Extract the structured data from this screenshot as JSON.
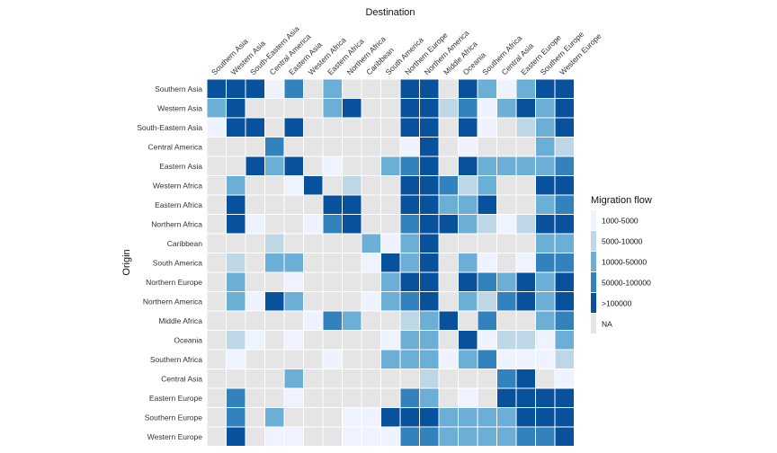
{
  "chart_data": {
    "type": "heatmap",
    "title": "Destination",
    "xlabel": "Destination",
    "ylabel": "Origin",
    "x_categories": [
      "Southern Asia",
      "Western Asia",
      "South-Eastern Asia",
      "Central America",
      "Eastern Asia",
      "Western Africa",
      "Eastern Africa",
      "Northern Africa",
      "Caribbean",
      "South America",
      "Northern Europe",
      "Northern America",
      "Middle Africa",
      "Oceania",
      "Southern Africa",
      "Central Asia",
      "Eastern Europe",
      "Southern Europe",
      "Western Europe"
    ],
    "y_categories": [
      "Southern Asia",
      "Western Asia",
      "South-Eastern Asia",
      "Central America",
      "Eastern Asia",
      "Western Africa",
      "Eastern Africa",
      "Northern Africa",
      "Caribbean",
      "South America",
      "Northern Europe",
      "Northern America",
      "Middle Africa",
      "Oceania",
      "Southern Africa",
      "Central Asia",
      "Eastern Europe",
      "Southern Europe",
      "Western Europe"
    ],
    "legend": {
      "title": "Migration flow",
      "placement": "right",
      "levels": [
        {
          "label": "1000-5000",
          "color": "#eff3ff"
        },
        {
          "label": "5000-10000",
          "color": "#bdd7e7"
        },
        {
          "label": "10000-50000",
          "color": "#6baed6"
        },
        {
          "label": "50000-100000",
          "color": "#3182bd"
        },
        {
          "label": ">100000",
          "color": "#08519c"
        },
        {
          "label": "NA",
          "color": "#e5e5e5"
        }
      ]
    },
    "values": [
      [
        ">100000",
        ">100000",
        ">100000",
        "1000-5000",
        "50000-100000",
        "NA",
        "10000-50000",
        "NA",
        "NA",
        "NA",
        ">100000",
        ">100000",
        "NA",
        ">100000",
        "10000-50000",
        "1000-5000",
        "10000-50000",
        ">100000",
        ">100000"
      ],
      [
        "10000-50000",
        ">100000",
        "NA",
        "NA",
        "NA",
        "NA",
        "10000-50000",
        ">100000",
        "NA",
        "NA",
        ">100000",
        ">100000",
        "5000-10000",
        "50000-100000",
        "1000-5000",
        "10000-50000",
        ">100000",
        "10000-50000",
        ">100000"
      ],
      [
        "1000-5000",
        ">100000",
        ">100000",
        "NA",
        ">100000",
        "NA",
        "NA",
        "NA",
        "NA",
        "NA",
        ">100000",
        ">100000",
        "NA",
        ">100000",
        "1000-5000",
        "NA",
        "5000-10000",
        "10000-50000",
        ">100000"
      ],
      [
        "NA",
        "NA",
        "NA",
        "50000-100000",
        "NA",
        "NA",
        "NA",
        "NA",
        "NA",
        "NA",
        "1000-5000",
        ">100000",
        "NA",
        "1000-5000",
        "NA",
        "NA",
        "NA",
        "10000-50000",
        "5000-10000"
      ],
      [
        "NA",
        "NA",
        ">100000",
        "10000-50000",
        ">100000",
        "NA",
        "1000-5000",
        "NA",
        "NA",
        "10000-50000",
        "50000-100000",
        ">100000",
        "NA",
        ">100000",
        "10000-50000",
        "10000-50000",
        "10000-50000",
        "10000-50000",
        "50000-100000"
      ],
      [
        "NA",
        "10000-50000",
        "NA",
        "NA",
        "1000-5000",
        ">100000",
        "NA",
        "5000-10000",
        "NA",
        "NA",
        ">100000",
        ">100000",
        "50000-100000",
        "5000-10000",
        "10000-50000",
        "NA",
        "NA",
        ">100000",
        ">100000"
      ],
      [
        "NA",
        ">100000",
        "NA",
        "NA",
        "NA",
        "NA",
        ">100000",
        ">100000",
        "NA",
        "NA",
        ">100000",
        ">100000",
        "10000-50000",
        "10000-50000",
        ">100000",
        "NA",
        "NA",
        "10000-50000",
        "50000-100000"
      ],
      [
        "NA",
        ">100000",
        "1000-5000",
        "NA",
        "NA",
        "1000-5000",
        "50000-100000",
        ">100000",
        "NA",
        "NA",
        "50000-100000",
        ">100000",
        ">100000",
        "10000-50000",
        "5000-10000",
        "1000-5000",
        "5000-10000",
        ">100000",
        ">100000"
      ],
      [
        "NA",
        "NA",
        "NA",
        "5000-10000",
        "NA",
        "NA",
        "NA",
        "NA",
        "10000-50000",
        "1000-5000",
        "10000-50000",
        ">100000",
        "NA",
        "NA",
        "NA",
        "NA",
        "NA",
        "10000-50000",
        "10000-50000"
      ],
      [
        "NA",
        "5000-10000",
        "NA",
        "10000-50000",
        "10000-50000",
        "NA",
        "NA",
        "NA",
        "1000-5000",
        ">100000",
        "10000-50000",
        ">100000",
        "NA",
        "10000-50000",
        "1000-5000",
        "NA",
        "1000-5000",
        "50000-100000",
        "50000-100000"
      ],
      [
        "NA",
        "10000-50000",
        "NA",
        "NA",
        "1000-5000",
        "NA",
        "NA",
        "NA",
        "NA",
        "10000-50000",
        ">100000",
        ">100000",
        "NA",
        ">100000",
        "50000-100000",
        "10000-50000",
        ">100000",
        "10000-50000",
        ">100000"
      ],
      [
        "NA",
        "10000-50000",
        "1000-5000",
        ">100000",
        "10000-50000",
        "NA",
        "NA",
        "NA",
        "1000-5000",
        "10000-50000",
        "50000-100000",
        ">100000",
        "NA",
        "10000-50000",
        "5000-10000",
        "50000-100000",
        ">100000",
        "10000-50000",
        ">100000"
      ],
      [
        "NA",
        "NA",
        "NA",
        "NA",
        "NA",
        "1000-5000",
        "50000-100000",
        "10000-50000",
        "NA",
        "NA",
        "5000-10000",
        "10000-50000",
        ">100000",
        "NA",
        "50000-100000",
        "NA",
        "NA",
        "10000-50000",
        "50000-100000"
      ],
      [
        "NA",
        "5000-10000",
        "1000-5000",
        "NA",
        "1000-5000",
        "NA",
        "NA",
        "NA",
        "NA",
        "1000-5000",
        "10000-50000",
        "10000-50000",
        "NA",
        ">100000",
        "1000-5000",
        "5000-10000",
        "5000-10000",
        "1000-5000",
        "10000-50000"
      ],
      [
        "NA",
        "1000-5000",
        "NA",
        "NA",
        "NA",
        "NA",
        "1000-5000",
        "NA",
        "NA",
        "10000-50000",
        "10000-50000",
        "10000-50000",
        "1000-5000",
        "10000-50000",
        "50000-100000",
        "1000-5000",
        "1000-5000",
        "1000-5000",
        "5000-10000"
      ],
      [
        "NA",
        "NA",
        "NA",
        "NA",
        "10000-50000",
        "NA",
        "NA",
        "NA",
        "NA",
        "NA",
        "NA",
        "5000-10000",
        "NA",
        "NA",
        "NA",
        "50000-100000",
        ">100000",
        "NA",
        "1000-5000"
      ],
      [
        "NA",
        "50000-100000",
        "NA",
        "NA",
        "1000-5000",
        "NA",
        "NA",
        "NA",
        "NA",
        "NA",
        "50000-100000",
        "10000-50000",
        "NA",
        "1000-5000",
        "NA",
        ">100000",
        ">100000",
        ">100000",
        ">100000"
      ],
      [
        "NA",
        "50000-100000",
        "NA",
        "10000-50000",
        "NA",
        "NA",
        "NA",
        "1000-5000",
        "1000-5000",
        ">100000",
        ">100000",
        ">100000",
        "10000-50000",
        "10000-50000",
        "10000-50000",
        "10000-50000",
        ">100000",
        ">100000",
        ">100000"
      ],
      [
        "NA",
        ">100000",
        "NA",
        "1000-5000",
        "1000-5000",
        "NA",
        "NA",
        "1000-5000",
        "1000-5000",
        "1000-5000",
        "50000-100000",
        "50000-100000",
        "10000-50000",
        "10000-50000",
        "10000-50000",
        "10000-50000",
        "50000-100000",
        "50000-100000",
        ">100000"
      ]
    ],
    "grid": false
  }
}
